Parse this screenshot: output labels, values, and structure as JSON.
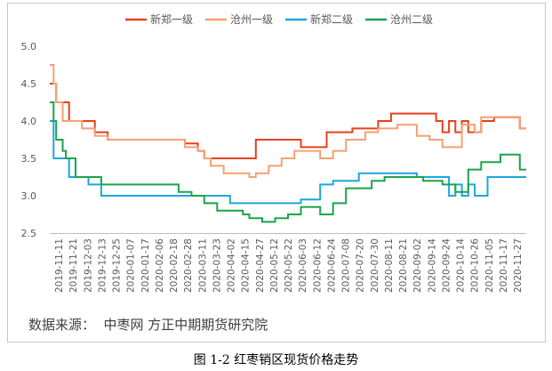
{
  "chart_data": {
    "type": "line",
    "title": "",
    "xlabel": "",
    "ylabel": "",
    "ylim": [
      2.5,
      5.0
    ],
    "yticks": [
      "5.0",
      "4.5",
      "4.0",
      "3.5",
      "3.0",
      "2.5"
    ],
    "grid": false,
    "legend_position": "top",
    "x_tick_labels": [
      "2019-11-11",
      "2019-11-21",
      "2019-12-03",
      "2019-12-13",
      "2019-12-25",
      "2020-01-07",
      "2020-01-17",
      "2020-02-06",
      "2020-02-18",
      "2020-02-28",
      "2020-03-11",
      "2020-03-23",
      "2020-04-02",
      "2020-04-15",
      "2020-04-27",
      "2020-05-12",
      "2020-05-22",
      "2020-06-03",
      "2020-06-12",
      "2020-06-24",
      "2020-07-08",
      "2020-07-20",
      "2020-07-30",
      "2020-08-11",
      "2020-08-21",
      "2020-09-02",
      "2020-09-14",
      "2020-09-24",
      "2020-10-14",
      "2020-10-26",
      "2020-11-05",
      "2020-11-17",
      "2020-11-27"
    ],
    "series": [
      {
        "name": "新郑一级",
        "color": "#e8401c",
        "points": [
          [
            0,
            4.5
          ],
          [
            1,
            4.5
          ],
          [
            1,
            4.25
          ],
          [
            2,
            4.25
          ],
          [
            3,
            4.25
          ],
          [
            3,
            4.0
          ],
          [
            6,
            4.0
          ],
          [
            7,
            4.0
          ],
          [
            7,
            3.85
          ],
          [
            9,
            3.85
          ],
          [
            9,
            3.75
          ],
          [
            21,
            3.75
          ],
          [
            21,
            3.7
          ],
          [
            23,
            3.7
          ],
          [
            23,
            3.6
          ],
          [
            24,
            3.6
          ],
          [
            24,
            3.5
          ],
          [
            32,
            3.5
          ],
          [
            32,
            3.75
          ],
          [
            39,
            3.75
          ],
          [
            39,
            3.65
          ],
          [
            43,
            3.65
          ],
          [
            43,
            3.85
          ],
          [
            47,
            3.85
          ],
          [
            47,
            3.9
          ],
          [
            51,
            3.9
          ],
          [
            51,
            4.0
          ],
          [
            53,
            4.0
          ],
          [
            53,
            4.1
          ],
          [
            60,
            4.1
          ],
          [
            60,
            4.0
          ],
          [
            61,
            4.0
          ],
          [
            61,
            3.85
          ],
          [
            62,
            3.85
          ],
          [
            62,
            4.0
          ],
          [
            63,
            4.0
          ],
          [
            63,
            3.85
          ],
          [
            64,
            3.85
          ],
          [
            64,
            4.0
          ],
          [
            65,
            4.0
          ],
          [
            65,
            3.85
          ],
          [
            67,
            3.85
          ],
          [
            67,
            4.0
          ],
          [
            69,
            4.0
          ],
          [
            69,
            4.05
          ],
          [
            73,
            4.05
          ],
          [
            73,
            3.9
          ],
          [
            74,
            3.9
          ]
        ]
      },
      {
        "name": "沧州一级",
        "color": "#f4a172",
        "points": [
          [
            0,
            4.75
          ],
          [
            0.6,
            4.75
          ],
          [
            0.6,
            4.5
          ],
          [
            1,
            4.5
          ],
          [
            1,
            4.25
          ],
          [
            2,
            4.25
          ],
          [
            2,
            4.0
          ],
          [
            5,
            4.0
          ],
          [
            5,
            3.9
          ],
          [
            7,
            3.9
          ],
          [
            7,
            3.8
          ],
          [
            9,
            3.8
          ],
          [
            9,
            3.75
          ],
          [
            21,
            3.75
          ],
          [
            21,
            3.65
          ],
          [
            23,
            3.65
          ],
          [
            23,
            3.6
          ],
          [
            24,
            3.6
          ],
          [
            24,
            3.5
          ],
          [
            25,
            3.5
          ],
          [
            25,
            3.4
          ],
          [
            27,
            3.4
          ],
          [
            27,
            3.3
          ],
          [
            31,
            3.3
          ],
          [
            31,
            3.25
          ],
          [
            32,
            3.25
          ],
          [
            32,
            3.3
          ],
          [
            34,
            3.3
          ],
          [
            34,
            3.4
          ],
          [
            36,
            3.4
          ],
          [
            36,
            3.5
          ],
          [
            38,
            3.5
          ],
          [
            38,
            3.6
          ],
          [
            42,
            3.6
          ],
          [
            42,
            3.5
          ],
          [
            44,
            3.5
          ],
          [
            44,
            3.6
          ],
          [
            46,
            3.6
          ],
          [
            46,
            3.75
          ],
          [
            49,
            3.75
          ],
          [
            49,
            3.85
          ],
          [
            51,
            3.85
          ],
          [
            51,
            3.9
          ],
          [
            54,
            3.9
          ],
          [
            54,
            3.95
          ],
          [
            57,
            3.95
          ],
          [
            57,
            3.8
          ],
          [
            59,
            3.8
          ],
          [
            59,
            3.75
          ],
          [
            61,
            3.75
          ],
          [
            61,
            3.65
          ],
          [
            64,
            3.65
          ],
          [
            64,
            3.95
          ],
          [
            66,
            3.95
          ],
          [
            66,
            3.85
          ],
          [
            67,
            3.85
          ],
          [
            67,
            4.05
          ],
          [
            73,
            4.05
          ],
          [
            73,
            3.9
          ],
          [
            74,
            3.9
          ]
        ]
      },
      {
        "name": "新郑二级",
        "color": "#1ea6dc",
        "points": [
          [
            0,
            4.0
          ],
          [
            0.6,
            4.0
          ],
          [
            0.6,
            3.5
          ],
          [
            2,
            3.5
          ],
          [
            3,
            3.5
          ],
          [
            3,
            3.25
          ],
          [
            6,
            3.25
          ],
          [
            6,
            3.15
          ],
          [
            8,
            3.15
          ],
          [
            8,
            3.0
          ],
          [
            28,
            3.0
          ],
          [
            28,
            2.9
          ],
          [
            39,
            2.9
          ],
          [
            39,
            2.95
          ],
          [
            42,
            2.95
          ],
          [
            42,
            3.15
          ],
          [
            44,
            3.15
          ],
          [
            44,
            3.2
          ],
          [
            48,
            3.2
          ],
          [
            48,
            3.3
          ],
          [
            57,
            3.3
          ],
          [
            57,
            3.25
          ],
          [
            62,
            3.25
          ],
          [
            62,
            3.0
          ],
          [
            63,
            3.0
          ],
          [
            63,
            3.15
          ],
          [
            64,
            3.15
          ],
          [
            64,
            3.0
          ],
          [
            65,
            3.0
          ],
          [
            65,
            3.15
          ],
          [
            66,
            3.15
          ],
          [
            66,
            3.0
          ],
          [
            68,
            3.0
          ],
          [
            68,
            3.25
          ],
          [
            74,
            3.25
          ]
        ]
      },
      {
        "name": "沧州二级",
        "color": "#1aa54a",
        "points": [
          [
            0,
            4.25
          ],
          [
            0.6,
            4.25
          ],
          [
            0.6,
            4.0
          ],
          [
            1,
            4.0
          ],
          [
            1,
            3.75
          ],
          [
            2,
            3.75
          ],
          [
            2,
            3.6
          ],
          [
            2.5,
            3.6
          ],
          [
            2.5,
            3.5
          ],
          [
            4,
            3.5
          ],
          [
            4,
            3.25
          ],
          [
            8,
            3.25
          ],
          [
            8,
            3.15
          ],
          [
            20,
            3.15
          ],
          [
            20,
            3.05
          ],
          [
            22,
            3.05
          ],
          [
            22,
            3.0
          ],
          [
            24,
            3.0
          ],
          [
            24,
            2.9
          ],
          [
            26,
            2.9
          ],
          [
            26,
            2.8
          ],
          [
            30,
            2.8
          ],
          [
            30,
            2.75
          ],
          [
            31,
            2.75
          ],
          [
            31,
            2.7
          ],
          [
            33,
            2.7
          ],
          [
            33,
            2.65
          ],
          [
            35,
            2.65
          ],
          [
            35,
            2.7
          ],
          [
            37,
            2.7
          ],
          [
            37,
            2.75
          ],
          [
            39,
            2.75
          ],
          [
            39,
            2.85
          ],
          [
            42,
            2.85
          ],
          [
            42,
            2.75
          ],
          [
            44,
            2.75
          ],
          [
            44,
            2.9
          ],
          [
            46,
            2.9
          ],
          [
            46,
            3.1
          ],
          [
            50,
            3.1
          ],
          [
            50,
            3.2
          ],
          [
            52,
            3.2
          ],
          [
            52,
            3.25
          ],
          [
            58,
            3.25
          ],
          [
            58,
            3.2
          ],
          [
            61,
            3.2
          ],
          [
            61,
            3.15
          ],
          [
            63,
            3.15
          ],
          [
            63,
            3.05
          ],
          [
            65,
            3.05
          ],
          [
            65,
            3.35
          ],
          [
            67,
            3.35
          ],
          [
            67,
            3.45
          ],
          [
            70,
            3.45
          ],
          [
            70,
            3.55
          ],
          [
            73,
            3.55
          ],
          [
            73,
            3.35
          ],
          [
            74,
            3.35
          ]
        ]
      }
    ]
  },
  "source_text": "数据来源：  中枣网 方正中期期货研究院",
  "caption": "图 1-2  红枣销区现货价格走势"
}
